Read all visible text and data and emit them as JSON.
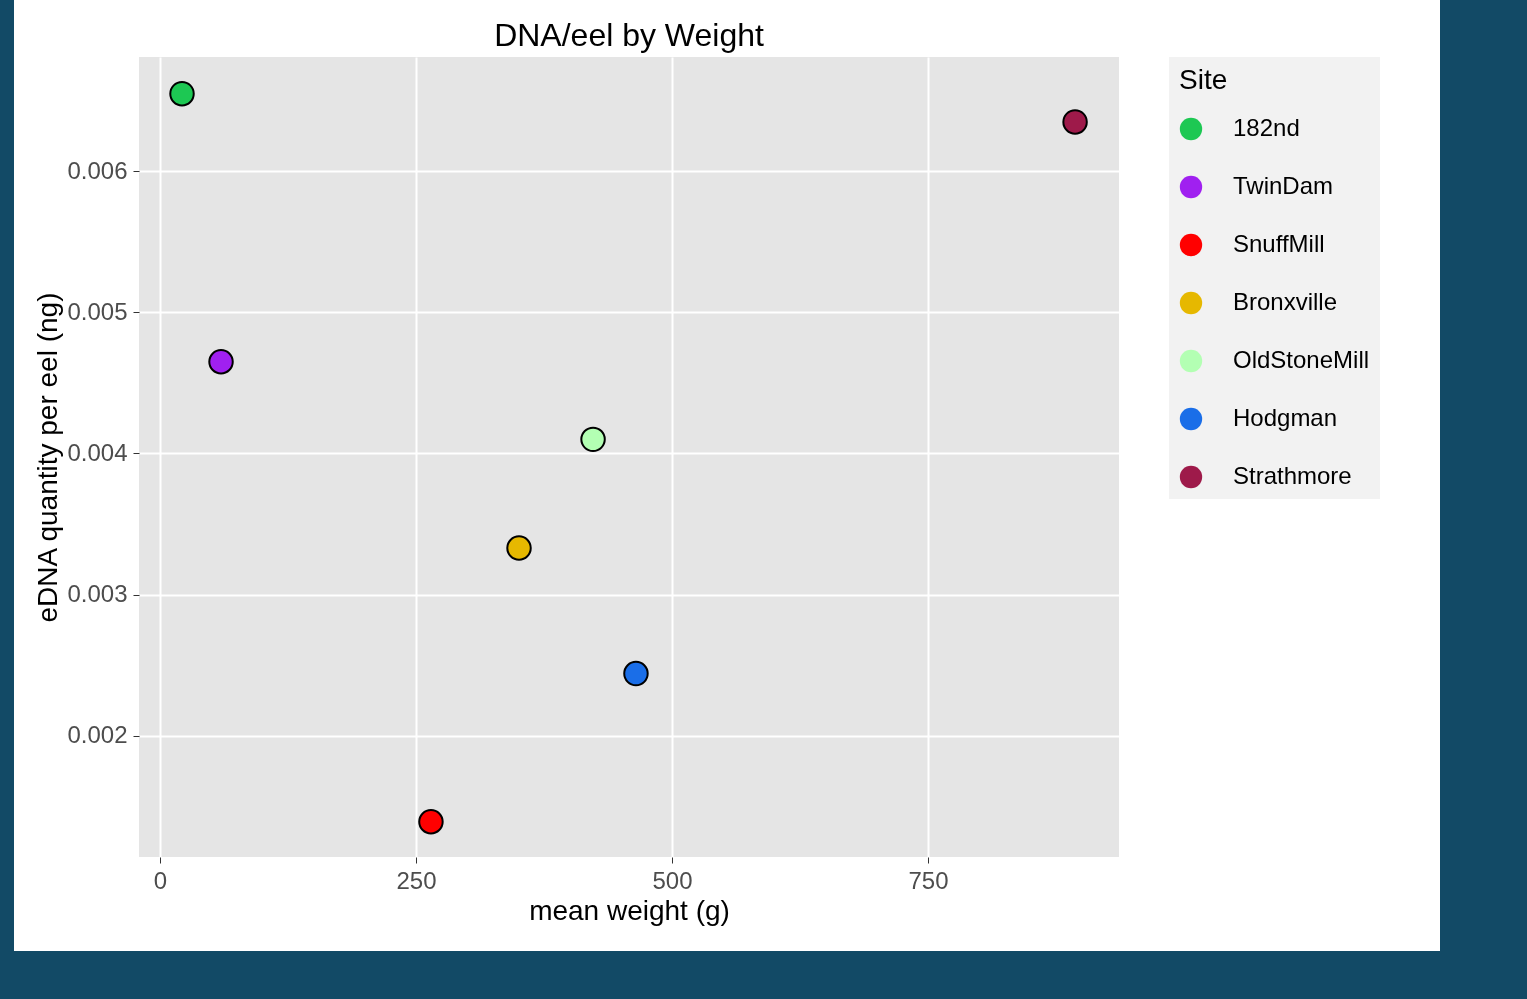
{
  "chart_data": {
    "type": "scatter",
    "title": "DNA/eel by Weight",
    "xlabel": "mean weight (g)",
    "ylabel": "eDNA quantity per eel (ng)",
    "legend_title": "Site",
    "legend": "right",
    "grid": true,
    "marker": "circle",
    "xlim": [
      -20.5,
      936.5
    ],
    "xticks": [
      0,
      250,
      500,
      750
    ],
    "ylim": [
      0.00114,
      0.00681
    ],
    "yticks": [
      0.002,
      0.003,
      0.004,
      0.005,
      0.006
    ],
    "series": [
      {
        "name": "182nd",
        "color": "#1dc853",
        "x": [
          21.5
        ],
        "values": [
          0.00655
        ]
      },
      {
        "name": "TwinDam",
        "color": "#a020f0",
        "x": [
          59.6
        ],
        "values": [
          0.00465
        ]
      },
      {
        "name": "SnuffMill",
        "color": "#ff0000",
        "x": [
          264.6
        ],
        "values": [
          0.00139
        ]
      },
      {
        "name": "Bronxville",
        "color": "#e6b800",
        "x": [
          350.6
        ],
        "values": [
          0.00333
        ]
      },
      {
        "name": "OldStoneMill",
        "color": "#b3ffb3",
        "x": [
          422.9
        ],
        "values": [
          0.0041
        ]
      },
      {
        "name": "Hodgman",
        "color": "#1a6ee8",
        "x": [
          464.8
        ],
        "values": [
          0.00244
        ]
      },
      {
        "name": "Strathmore",
        "color": "#9e1a4a",
        "x": [
          893.6
        ],
        "values": [
          0.00635
        ]
      }
    ]
  }
}
